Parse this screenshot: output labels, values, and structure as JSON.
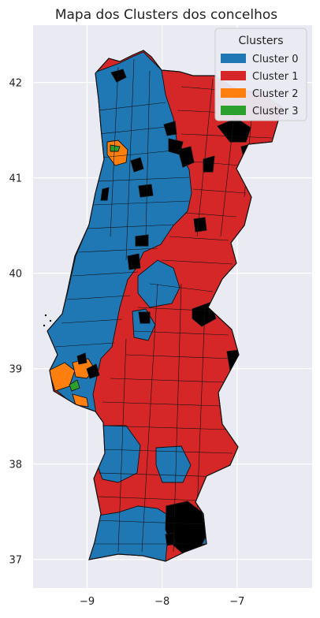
{
  "chart_data": {
    "type": "choropleth",
    "title": "Mapa dos Clusters dos concelhos",
    "x_ticks": [
      -9,
      -8,
      -7
    ],
    "y_ticks": [
      37,
      38,
      39,
      40,
      41,
      42
    ],
    "xlim": [
      -9.72,
      -6.0
    ],
    "ylim": [
      36.7,
      42.6
    ],
    "grid": true,
    "legend": {
      "title": "Clusters",
      "placement": "top-right",
      "entries": [
        {
          "label": "Cluster 0",
          "color": "#1f77b4"
        },
        {
          "label": "Cluster 1",
          "color": "#d62728"
        },
        {
          "label": "Cluster 2",
          "color": "#ff7f0e"
        },
        {
          "label": "Cluster 3",
          "color": "#2ca02c"
        }
      ]
    },
    "no_data_color": "#000000",
    "background_color": "#eaeaf2"
  }
}
